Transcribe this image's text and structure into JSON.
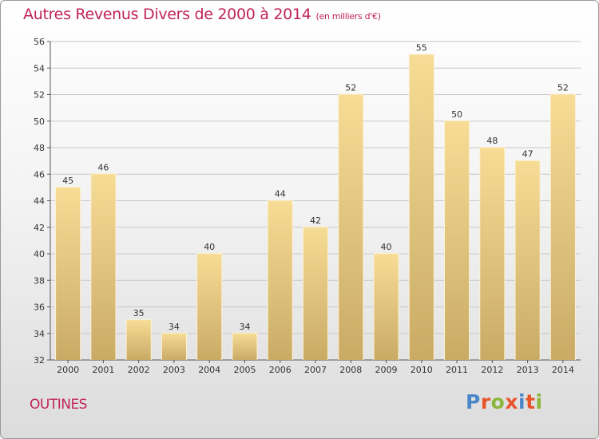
{
  "header": {
    "title": "Autres Revenus Divers de 2000 à 2014",
    "subtitle": "(en milliers d'€)"
  },
  "footer": {
    "city": "OUTINES",
    "brand": "Proxiti",
    "brand_colors": [
      "#4a86c8",
      "#e8542a",
      "#8cb63c",
      "#e8542a",
      "#4a86c8",
      "#e8542a",
      "#8cb63c"
    ]
  },
  "chart_data": {
    "type": "bar",
    "title": "Autres Revenus Divers de 2000 à 2014",
    "subtitle": "(en milliers d'€)",
    "xlabel": "",
    "ylabel": "",
    "categories": [
      "2000",
      "2001",
      "2002",
      "2003",
      "2004",
      "2005",
      "2006",
      "2007",
      "2008",
      "2009",
      "2010",
      "2011",
      "2012",
      "2013",
      "2014"
    ],
    "values": [
      45,
      46,
      35,
      34,
      40,
      34,
      44,
      42,
      52,
      40,
      55,
      50,
      48,
      47,
      52
    ],
    "ylim": [
      32,
      56
    ],
    "yticks": [
      32,
      34,
      36,
      38,
      40,
      42,
      44,
      46,
      48,
      50,
      52,
      54,
      56
    ],
    "grid": true,
    "bar_color_light": "#f7dc96",
    "bar_color_dark": "#c9ab66"
  }
}
